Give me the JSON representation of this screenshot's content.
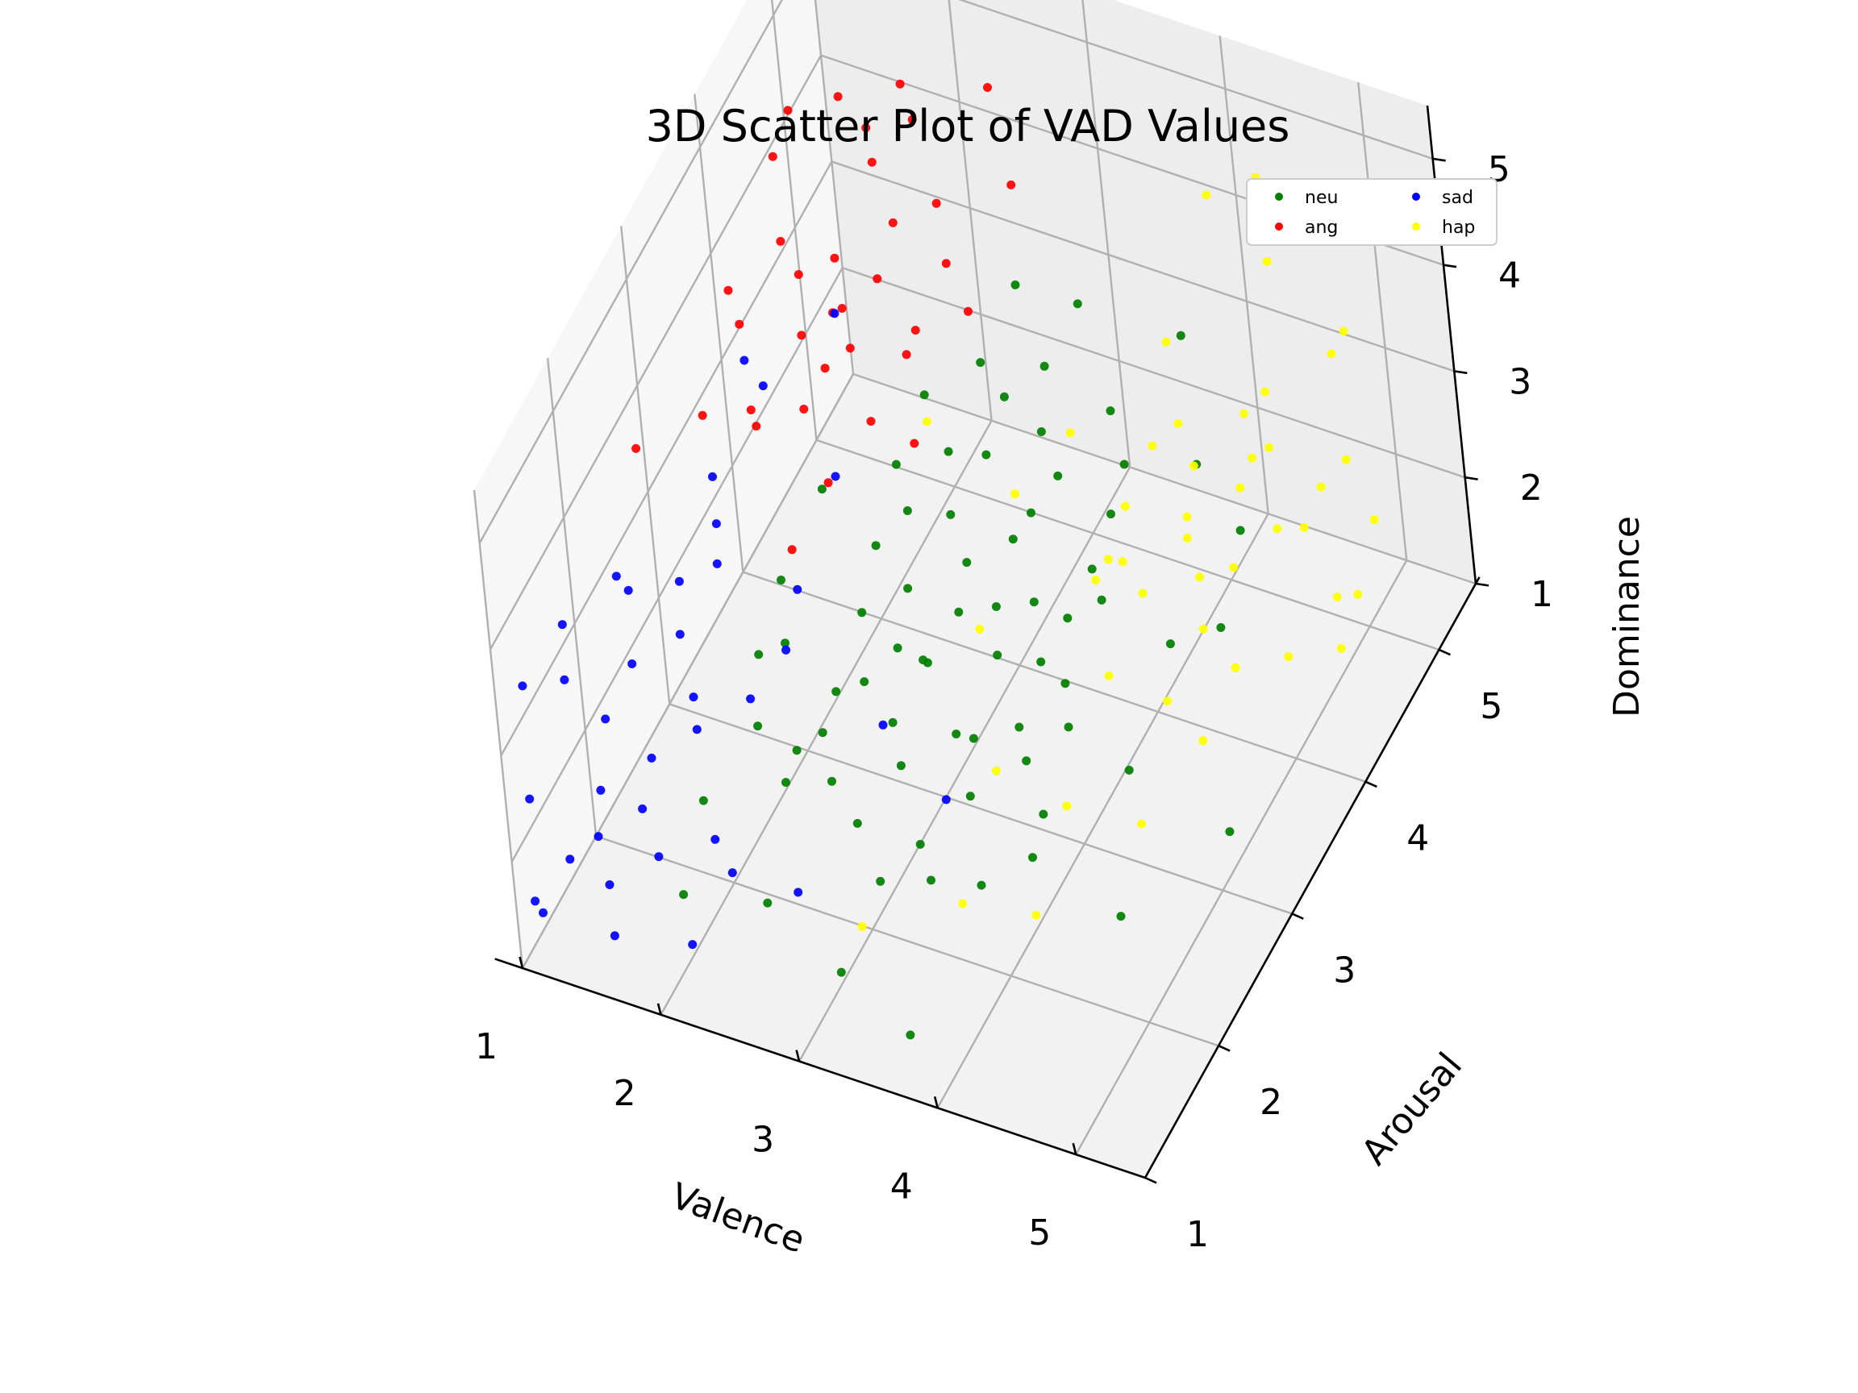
{
  "chart_data": {
    "type": "scatter",
    "projection": "3d",
    "title": "3D Scatter Plot of VAD Values",
    "xlabel": "Valence",
    "ylabel": "Arousal",
    "zlabel": "Dominance",
    "xticks": [
      "1",
      "2",
      "3",
      "4",
      "5"
    ],
    "yticks": [
      "1",
      "2",
      "3",
      "4",
      "5"
    ],
    "zticks": [
      "1",
      "2",
      "3",
      "4",
      "5"
    ],
    "xlim": [
      1,
      5.5
    ],
    "ylim": [
      1,
      5.5
    ],
    "zlim": [
      1,
      5.5
    ],
    "grid": true,
    "legend": {
      "position": "top-right",
      "columns": 2
    },
    "colors": {
      "neu": "#008000",
      "ang": "#ff0000",
      "sad": "#0000ff",
      "hap": "#ffff00"
    },
    "series": [
      {
        "name": "neu",
        "color": "#008000",
        "points": [
          [
            1.5,
            2.5,
            1
          ],
          [
            2,
            1.5,
            1.5
          ],
          [
            2.5,
            2,
            2
          ],
          [
            2.5,
            2.5,
            2
          ],
          [
            2.5,
            3,
            2
          ],
          [
            3,
            2,
            2
          ],
          [
            3,
            2.5,
            2
          ],
          [
            3,
            3,
            2
          ],
          [
            3,
            3.5,
            2
          ],
          [
            3.5,
            2,
            2
          ],
          [
            3.5,
            2.5,
            2
          ],
          [
            3.5,
            3,
            2
          ],
          [
            3.5,
            3.5,
            2
          ],
          [
            4,
            2.5,
            2
          ],
          [
            4,
            3,
            2
          ],
          [
            2.5,
            2.5,
            2.5
          ],
          [
            2.5,
            3,
            2.5
          ],
          [
            3,
            2.5,
            2.5
          ],
          [
            3,
            3,
            2.5
          ],
          [
            3,
            3.5,
            2.5
          ],
          [
            3.5,
            2.5,
            2.5
          ],
          [
            3.5,
            3,
            2.5
          ],
          [
            3.5,
            3.5,
            2.5
          ],
          [
            4,
            3,
            2.5
          ],
          [
            4,
            3.5,
            2.5
          ],
          [
            2.5,
            3,
            3
          ],
          [
            3,
            2.5,
            3
          ],
          [
            3,
            3,
            3
          ],
          [
            3,
            3.5,
            3
          ],
          [
            3.5,
            3,
            3
          ],
          [
            3.5,
            3.5,
            3
          ],
          [
            3.5,
            4,
            3
          ],
          [
            4,
            3,
            3
          ],
          [
            4,
            3.5,
            3
          ],
          [
            2.5,
            3.5,
            3.5
          ],
          [
            3,
            3.5,
            3.5
          ],
          [
            3,
            4,
            3.5
          ],
          [
            3.5,
            3.5,
            3.5
          ],
          [
            3.5,
            4,
            3.5
          ],
          [
            4,
            3.5,
            3.5
          ],
          [
            4,
            4,
            3.5
          ],
          [
            3,
            4,
            4
          ],
          [
            3.5,
            4,
            4
          ],
          [
            4,
            4,
            4
          ],
          [
            2,
            2.5,
            2
          ],
          [
            2,
            3,
            2
          ],
          [
            2,
            3,
            2.5
          ],
          [
            2,
            2.5,
            2.5
          ],
          [
            2.5,
            2,
            2.5
          ],
          [
            3,
            4,
            3
          ],
          [
            4,
            2,
            2
          ],
          [
            4.5,
            3,
            2
          ],
          [
            4.5,
            3.5,
            2.5
          ],
          [
            3,
            2,
            1.5
          ],
          [
            3.5,
            2,
            1.5
          ],
          [
            2.5,
            1.5,
            1.5
          ],
          [
            3,
            1.5,
            1
          ],
          [
            2.5,
            2.5,
            1.5
          ],
          [
            3,
            3,
            1.5
          ],
          [
            3.5,
            3,
            1.5
          ],
          [
            4,
            2.5,
            1.5
          ],
          [
            4.5,
            4,
            2
          ],
          [
            5,
            3,
            1.5
          ],
          [
            4.5,
            2.5,
            1
          ],
          [
            3.5,
            4.5,
            4
          ],
          [
            4,
            4.5,
            4
          ],
          [
            2.5,
            4,
            3.5
          ],
          [
            2,
            3.5,
            3
          ],
          [
            2.5,
            3.5,
            3
          ],
          [
            3,
            4.5,
            4
          ],
          [
            4.5,
            4,
            3.5
          ],
          [
            4,
            5,
            1.5
          ],
          [
            3.5,
            1.5,
            1
          ]
        ]
      },
      {
        "name": "ang",
        "color": "#ff0000",
        "points": [
          [
            1.5,
            4,
            5
          ],
          [
            1.5,
            4.5,
            5
          ],
          [
            2,
            4.5,
            5
          ],
          [
            2,
            5,
            5
          ],
          [
            2.5,
            5,
            5
          ],
          [
            1.5,
            4,
            4.5
          ],
          [
            2,
            4,
            4.5
          ],
          [
            2,
            4.5,
            4.5
          ],
          [
            2.5,
            4.5,
            4.5
          ],
          [
            1.5,
            3.5,
            4.5
          ],
          [
            2,
            5,
            4.5
          ],
          [
            2.5,
            5,
            4
          ],
          [
            1.5,
            4,
            4
          ],
          [
            2,
            4,
            4
          ],
          [
            2,
            4.5,
            4
          ],
          [
            2.5,
            4.5,
            4
          ],
          [
            1.5,
            3.5,
            4
          ],
          [
            2,
            3.5,
            4
          ],
          [
            1.5,
            3,
            4
          ],
          [
            1.5,
            4,
            3.5
          ],
          [
            2,
            4,
            3.5
          ],
          [
            2,
            4.5,
            3.5
          ],
          [
            2.5,
            4.5,
            3.5
          ],
          [
            1.5,
            3.5,
            3.5
          ],
          [
            2,
            3.5,
            3.5
          ],
          [
            1.5,
            4.5,
            3
          ],
          [
            2,
            4,
            3
          ],
          [
            2,
            4.5,
            3
          ],
          [
            2.5,
            4,
            3
          ],
          [
            1.5,
            3.5,
            3
          ],
          [
            2,
            3.5,
            3
          ],
          [
            1,
            3,
            3.5
          ],
          [
            1.5,
            5,
            4.5
          ],
          [
            2.5,
            4,
            4
          ],
          [
            2,
            3,
            3
          ]
        ]
      },
      {
        "name": "sad",
        "color": "#0000ff",
        "points": [
          [
            1,
            1.5,
            3
          ],
          [
            1,
            2,
            3
          ],
          [
            1,
            2,
            2.5
          ],
          [
            1,
            2.5,
            2.5
          ],
          [
            1,
            1.5,
            2
          ],
          [
            1,
            2,
            2
          ],
          [
            1,
            2.5,
            2
          ],
          [
            1.5,
            2,
            2
          ],
          [
            1.5,
            2.5,
            2
          ],
          [
            1,
            1.5,
            1.5
          ],
          [
            1,
            2,
            1.5
          ],
          [
            1.5,
            1.5,
            1.5
          ],
          [
            1.5,
            2,
            1.5
          ],
          [
            1.5,
            2.5,
            1.5
          ],
          [
            2,
            2,
            1.5
          ],
          [
            1,
            1.5,
            1
          ],
          [
            1.5,
            1.5,
            1
          ],
          [
            1.5,
            2,
            1
          ],
          [
            2,
            2,
            1
          ],
          [
            1,
            2,
            1
          ],
          [
            1.5,
            2.5,
            2.5
          ],
          [
            1.5,
            3,
            2.5
          ],
          [
            2,
            3,
            2.5
          ],
          [
            1.5,
            3,
            3
          ],
          [
            2,
            3.5,
            3
          ],
          [
            1.5,
            3,
            3.5
          ],
          [
            1.5,
            3.5,
            4
          ],
          [
            2,
            4,
            4
          ],
          [
            1,
            2.5,
            3
          ],
          [
            1.5,
            2.5,
            3
          ],
          [
            2,
            2.5,
            2
          ],
          [
            2.5,
            3,
            1.5
          ],
          [
            1,
            1,
            1.5
          ],
          [
            2,
            3,
            2
          ],
          [
            1.5,
            3.5,
            3.5
          ],
          [
            2,
            1.5,
            1
          ],
          [
            2.5,
            2,
            1
          ],
          [
            3,
            3,
            1
          ]
        ]
      },
      {
        "name": "hap",
        "color": "#ffff00",
        "points": [
          [
            4.5,
            4,
            2
          ],
          [
            4.5,
            4,
            2.5
          ],
          [
            4.5,
            4.5,
            2.5
          ],
          [
            5,
            4.5,
            2.5
          ],
          [
            4,
            4,
            2
          ],
          [
            4,
            4.5,
            2
          ],
          [
            4.5,
            4.5,
            2
          ],
          [
            5,
            4.5,
            2
          ],
          [
            4,
            4,
            2.5
          ],
          [
            4,
            4.5,
            2.5
          ],
          [
            5,
            5,
            2.5
          ],
          [
            4.5,
            5,
            2.5
          ],
          [
            4,
            4,
            3
          ],
          [
            4,
            4.5,
            3
          ],
          [
            4.5,
            4.5,
            3
          ],
          [
            5,
            4.5,
            3
          ],
          [
            4.5,
            5,
            3
          ],
          [
            4,
            3.5,
            3
          ],
          [
            4,
            4,
            3.5
          ],
          [
            4.5,
            4,
            3.5
          ],
          [
            4.5,
            4.5,
            3.5
          ],
          [
            5,
            5,
            3.5
          ],
          [
            5,
            5,
            4
          ],
          [
            4.5,
            5,
            4
          ],
          [
            4,
            4.5,
            4
          ],
          [
            5,
            5,
            5
          ],
          [
            4.5,
            5,
            5
          ],
          [
            4,
            5,
            4.5
          ],
          [
            3.5,
            4,
            3.5
          ],
          [
            3.5,
            4,
            2
          ],
          [
            4,
            3.5,
            2
          ],
          [
            4.5,
            3.5,
            2
          ],
          [
            4,
            3,
            1.5
          ],
          [
            3.5,
            3,
            1.5
          ],
          [
            4,
            2.5,
            1
          ],
          [
            3.5,
            2.5,
            1
          ],
          [
            3,
            2,
            1
          ],
          [
            4.5,
            3,
            1.5
          ],
          [
            4.5,
            3.5,
            1.5
          ],
          [
            5,
            4,
            2
          ],
          [
            5,
            4.5,
            1.5
          ],
          [
            5,
            5,
            1.5
          ],
          [
            3,
            3.5,
            2
          ],
          [
            3,
            4,
            2.5
          ],
          [
            2.5,
            4,
            3
          ],
          [
            4.5,
            4,
            1.5
          ],
          [
            5,
            4,
            3
          ],
          [
            5,
            5,
            2
          ]
        ]
      }
    ]
  }
}
